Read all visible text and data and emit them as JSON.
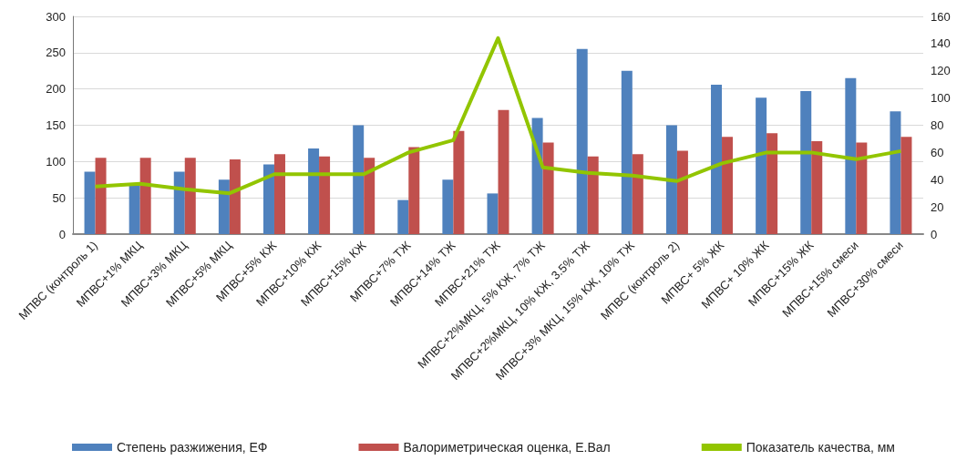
{
  "chart_data": {
    "type": "bar",
    "categories": [
      "МПВС (контроль 1)",
      "МПВС+1% МКЦ",
      "МПВС+3% МКЦ",
      "МПВС+5% МКЦ",
      "МПВС+5% КЖ",
      "МПВС+10% КЖ",
      "МПВС+15% КЖ",
      "МПВС+7% ТЖ",
      "МПВС+14% ТЖ",
      "МПВС+21% ТЖ",
      "МПВС+2%МКЦ, 5% КЖ, 7% ТЖ",
      "МПВС+2%МКЦ, 10% КЖ, 3.5% ТЖ",
      "МПВС+3% МКЦ, 15% КЖ, 10% ТЖ",
      "МПВС (контроль 2)",
      "МПВС+ 5% ЖК",
      "МПВС+ 10% ЖК",
      "МПВС+15% ЖК",
      "МПВС+15% смеси",
      "МПВС+30% смеси"
    ],
    "series": [
      {
        "name": "Степень разжижения, ЕФ",
        "color": "#4f81bd",
        "values": [
          86,
          70,
          86,
          75,
          96,
          118,
          150,
          47,
          75,
          56,
          160,
          255,
          225,
          150,
          206,
          188,
          197,
          215,
          169
        ]
      },
      {
        "name": "Валориметрическая оценка, Е.Вал",
        "color": "#c0504d",
        "values": [
          105,
          105,
          105,
          103,
          110,
          107,
          105,
          120,
          142,
          171,
          126,
          107,
          110,
          115,
          134,
          139,
          128,
          126,
          134
        ]
      },
      {
        "name": "Показатель качества, мм",
        "type": "line",
        "axis": "y2",
        "color": "#92c500",
        "values": [
          35,
          37,
          33,
          30,
          44,
          44,
          44,
          60,
          69,
          144,
          49,
          45,
          43,
          39,
          52,
          60,
          60,
          55,
          61
        ]
      }
    ],
    "ylim": [
      0,
      300
    ],
    "yticks": [
      0,
      50,
      100,
      150,
      200,
      250,
      300
    ],
    "y2lim": [
      0,
      160
    ],
    "y2ticks": [
      0,
      20,
      40,
      60,
      80,
      100,
      120,
      140,
      160
    ],
    "grid": "y",
    "legend": "bottom",
    "marker": "none",
    "line_style": "solid"
  }
}
